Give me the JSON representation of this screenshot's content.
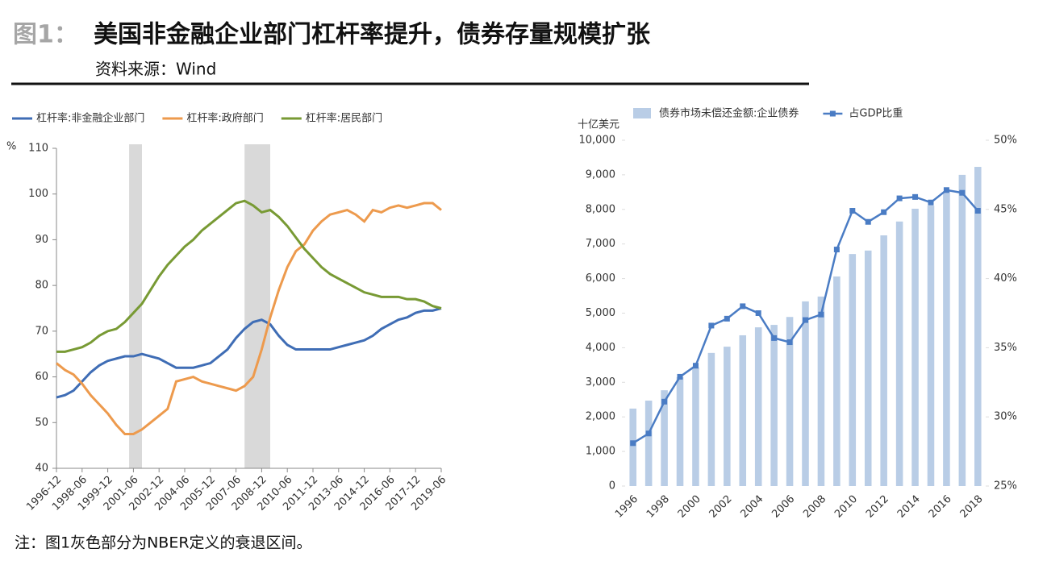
{
  "figure": {
    "label": "图1：",
    "title": "美国非金融企业部门杠杆率提升，债券存量规模扩张",
    "source": "资料来源：Wind",
    "note": "注：图1灰色部分为NBER定义的衰退区间。"
  },
  "chart_data": [
    {
      "type": "line",
      "y_label": "%",
      "categories": [
        "1996-12",
        null,
        null,
        "1998-06",
        null,
        null,
        "1999-12",
        null,
        null,
        "2001-06",
        null,
        null,
        "2002-12",
        null,
        null,
        "2004-06",
        null,
        null,
        "2005-12",
        null,
        null,
        "2007-06",
        null,
        null,
        "2008-12",
        null,
        null,
        "2010-06",
        null,
        null,
        "2011-12",
        null,
        null,
        "2013-06",
        null,
        null,
        "2014-12",
        null,
        null,
        "2016-06",
        null,
        null,
        "2017-12",
        null,
        null,
        "2019-06"
      ],
      "series": [
        {
          "name": "杠杆率:非金融企业部门",
          "color": "#3f6db5",
          "values": [
            55.5,
            56,
            57,
            59,
            61,
            62.5,
            63.5,
            64,
            64.5,
            64.5,
            65,
            64.5,
            64,
            63,
            62,
            62,
            62,
            62.5,
            63,
            64.5,
            66,
            68.5,
            70.5,
            72,
            72.5,
            71.5,
            69,
            67,
            66,
            66,
            66,
            66,
            66,
            66.5,
            67,
            67.5,
            68,
            69,
            70.5,
            71.5,
            72.5,
            73,
            74,
            74.5,
            74.5,
            75
          ]
        },
        {
          "name": "杠杆率:政府部门",
          "color": "#ed9a4d",
          "values": [
            63,
            61.5,
            60.5,
            58.5,
            56,
            54,
            52,
            49.5,
            47.5,
            47.5,
            48.5,
            50,
            51.5,
            53,
            59,
            59.5,
            60,
            59,
            58.5,
            58,
            57.5,
            57,
            58,
            60,
            66,
            73,
            79,
            84,
            87.5,
            89,
            92,
            94,
            95.5,
            96,
            96.5,
            95.5,
            94,
            96.5,
            96,
            97,
            97.5,
            97,
            97.5,
            98,
            98,
            96.5
          ]
        },
        {
          "name": "杠杆率:居民部门",
          "color": "#789a34",
          "values": [
            65.5,
            65.5,
            66,
            66.5,
            67.5,
            69,
            70,
            70.5,
            72,
            74,
            76,
            79,
            82,
            84.5,
            86.5,
            88.5,
            90,
            92,
            93.5,
            95,
            96.5,
            98,
            98.5,
            97.5,
            96,
            96.5,
            95,
            93,
            90.5,
            88,
            86,
            84,
            82.5,
            81.5,
            80.5,
            79.5,
            78.5,
            78,
            77.5,
            77.5,
            77.5,
            77,
            77,
            76.5,
            75.5,
            75
          ]
        }
      ],
      "shaded": [
        {
          "start": "2001-03",
          "end": "2001-12"
        },
        {
          "start": "2007-12",
          "end": "2009-06"
        }
      ],
      "shade_color": "#d9d9d9",
      "ylim": [
        40,
        110
      ],
      "yticks": [
        40,
        50,
        60,
        70,
        80,
        90,
        100,
        110
      ]
    },
    {
      "type": "combo",
      "y_label": "十亿美元",
      "categories": [
        "1996",
        null,
        "1998",
        null,
        "2000",
        null,
        "2002",
        null,
        "2004",
        null,
        "2006",
        null,
        "2008",
        null,
        "2010",
        null,
        "2012",
        null,
        "2014",
        null,
        "2016",
        null,
        "2018"
      ],
      "series": [
        {
          "name": "债券市场未偿还金额:企业债券",
          "type": "bar",
          "color": "#b9cde6",
          "values": [
            2240,
            2470,
            2770,
            3150,
            3430,
            3850,
            4030,
            4360,
            4590,
            4660,
            4890,
            5340,
            5480,
            6060,
            6710,
            6810,
            7250,
            7650,
            8020,
            8110,
            8530,
            9000,
            9230
          ]
        },
        {
          "name": "占GDP比重",
          "type": "line",
          "axis": "y2",
          "color": "#4a7cc4",
          "values": [
            28.1,
            28.8,
            31.1,
            32.9,
            33.7,
            36.6,
            37.1,
            38.0,
            37.5,
            35.7,
            35.4,
            37.0,
            37.4,
            42.1,
            44.9,
            44.1,
            44.8,
            45.8,
            45.9,
            45.5,
            46.4,
            46.2,
            44.9
          ]
        }
      ],
      "ylim": [
        0,
        10000
      ],
      "yticks": [
        0,
        {
          "value": 1000,
          "label": "1,000"
        },
        {
          "value": 2000,
          "label": "2,000"
        },
        {
          "value": 3000,
          "label": "3,000"
        },
        {
          "value": 4000,
          "label": "4,000"
        },
        {
          "value": 5000,
          "label": "5,000"
        },
        {
          "value": 6000,
          "label": "6,000"
        },
        {
          "value": 7000,
          "label": "7,000"
        },
        {
          "value": 8000,
          "label": "8,000"
        },
        {
          "value": 9000,
          "label": "9,000"
        },
        {
          "value": 10000,
          "label": "10,000"
        }
      ],
      "y2lim": [
        25,
        50
      ],
      "y2ticks": [
        {
          "value": 25,
          "label": "25%"
        },
        {
          "value": 30,
          "label": "30%"
        },
        {
          "value": 35,
          "label": "35%"
        },
        {
          "value": 40,
          "label": "40%"
        },
        {
          "value": 45,
          "label": "45%"
        },
        {
          "value": 50,
          "label": "50%"
        }
      ]
    }
  ]
}
